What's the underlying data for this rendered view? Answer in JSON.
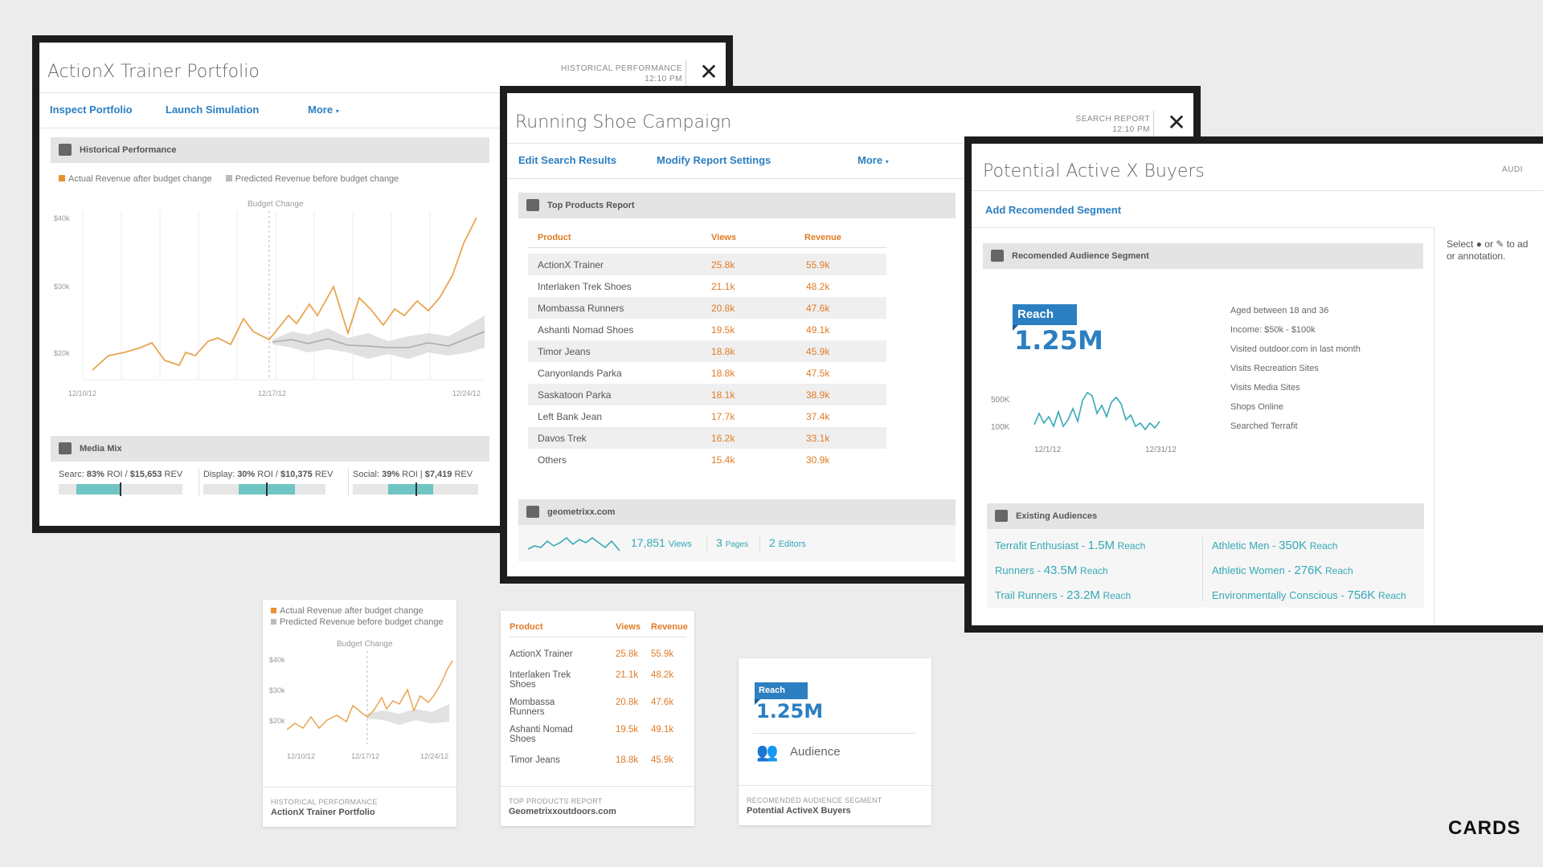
{
  "win1": {
    "title": "ActionX Trainer Portfolio",
    "meta1": "HISTORICAL PERFORMANCE",
    "meta2": "12:10 PM",
    "actions": [
      "Inspect Portfolio",
      "Launch Simulation",
      "More"
    ],
    "section1": "Historical Performance",
    "legend_actual": "Actual Revenue after budget change",
    "legend_predicted": "Predicted Revenue before budget change",
    "marker_label": "Budget Change",
    "yticks": [
      "$40k",
      "$30k",
      "$20k"
    ],
    "xticks": [
      "12/10/12",
      "12/17/12",
      "12/24/12"
    ],
    "section2": "Media Mix",
    "media": [
      {
        "name": "Searc:",
        "pct": "83%",
        "roi": "ROI /",
        "rev": "$15,653",
        "unit": "REV",
        "fill": 0.37
      },
      {
        "name": "Display:",
        "pct": "30%",
        "roi": "ROI /",
        "rev": "$10,375",
        "unit": "REV",
        "fill": 0.46
      },
      {
        "name": "Social:",
        "pct": "39%",
        "roi": "ROI  |",
        "rev": "$7,419",
        "unit": "REV",
        "fill": 0.36
      }
    ]
  },
  "win2": {
    "title": "Running Shoe Campaign",
    "meta1": "SEARCH REPORT",
    "meta2": "12:10 PM",
    "actions": [
      "Edit Search Results",
      "Modify Report Settings",
      "More"
    ],
    "section1": "Top Products Report",
    "headers": [
      "Product",
      "Views",
      "Revenue"
    ],
    "rows": [
      [
        "ActionX Trainer",
        "25.8k",
        "55.9k"
      ],
      [
        "Interlaken Trek Shoes",
        "21.1k",
        "48.2k"
      ],
      [
        "Mombassa Runners",
        "20.8k",
        "47.6k"
      ],
      [
        "Ashanti Nomad Shoes",
        "19.5k",
        "49.1k"
      ],
      [
        "Timor Jeans",
        "18.8k",
        "45.9k"
      ],
      [
        "Canyonlands Parka",
        "18.8k",
        "47.5k"
      ],
      [
        "Saskatoon Parka",
        "18.1k",
        "38.9k"
      ],
      [
        "Left Bank Jean",
        "17.7k",
        "37.4k"
      ],
      [
        "Davos Trek",
        "16.2k",
        "33.1k"
      ],
      [
        "Others",
        "15.4k",
        "30.9k"
      ]
    ],
    "section2": "geometrixx.com",
    "views_num": "17,851",
    "views_label": "Views",
    "pages_num": "3",
    "pages_label": "Pages",
    "editors_num": "2",
    "editors_label": "Editors"
  },
  "win3": {
    "title": "Potential Active X Buyers",
    "meta_partial": "AUDI",
    "action": "Add Recomended Segment",
    "section1": "Recomended Audience Segment",
    "reach_label": "Reach",
    "reach_value": "1.25M",
    "yticks": [
      "500K",
      "100K"
    ],
    "xticks": [
      "12/1/12",
      "12/31/12"
    ],
    "attributes": [
      "Aged between 18 and 36",
      "Income: $50k - $100k",
      "Visited outdoor.com in last month",
      "Visits Recreation Sites",
      "Visits Media Sites",
      "Shops Online",
      "Searched Terrafit"
    ],
    "side_note_1": "Select",
    "side_note_2": "or",
    "side_note_3": "to ad",
    "side_note_4": "or annotation.",
    "section2": "Existing Audiences",
    "audiences": [
      {
        "name": "Terrafit Enthusiast - ",
        "val": "1.5M",
        "unit": "Reach"
      },
      {
        "name": "Athletic Men - ",
        "val": "350K",
        "unit": "Reach"
      },
      {
        "name": "Runners - ",
        "val": "43.5M",
        "unit": "Reach"
      },
      {
        "name": "Athletic Women - ",
        "val": "276K",
        "unit": "Reach"
      },
      {
        "name": "Trail Runners - ",
        "val": "23.2M",
        "unit": "Reach"
      },
      {
        "name": "Environmentally Conscious - ",
        "val": "756K",
        "unit": "Reach"
      }
    ]
  },
  "card1": {
    "legend_actual": "Actual Revenue after budget change",
    "legend_predicted": "Predicted Revenue before budget change",
    "marker_label": "Budget Change",
    "yticks": [
      "$40k",
      "$30k",
      "$20k"
    ],
    "xticks": [
      "12/10/12",
      "12/17/12",
      "12/24/12"
    ],
    "foot_key": "HISTORICAL PERFORMANCE",
    "foot_val": "ActionX Trainer Portfolio"
  },
  "card2": {
    "headers": [
      "Product",
      "Views",
      "Revenue"
    ],
    "rows": [
      [
        "ActionX Trainer",
        "25.8k",
        "55.9k"
      ],
      [
        "Interlaken Trek Shoes",
        "21.1k",
        "48.2k"
      ],
      [
        "Mombassa Runners",
        "20.8k",
        "47.6k"
      ],
      [
        "Ashanti Nomad Shoes",
        "19.5k",
        "49.1k"
      ],
      [
        "Timor Jeans",
        "18.8k",
        "45.9k"
      ]
    ],
    "foot_key": "TOP PRODUCTS REPORT",
    "foot_val": "Geometrixxoutdoors.com"
  },
  "card3": {
    "reach_label": "Reach",
    "reach_value": "1.25M",
    "audience_label": "Audience",
    "foot_key": "RECOMENDED AUDIENCE SEGMENT",
    "foot_val": "Potential ActiveX Buyers"
  },
  "brand": "CARDS",
  "colors": {
    "accent": "#2c7fc1",
    "orange": "#e07b27",
    "teal": "#35a9b6",
    "frame": "#1d1d1d"
  }
}
